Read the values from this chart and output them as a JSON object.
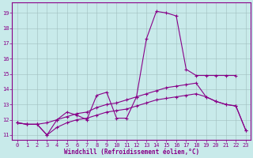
{
  "background_color": "#c8eaea",
  "grid_color": "#b0c8c8",
  "line_color": "#880088",
  "xlabel": "Windchill (Refroidissement éolien,°C)",
  "xlim": [
    -0.5,
    23.5
  ],
  "ylim": [
    10.7,
    19.7
  ],
  "yticks": [
    11,
    12,
    13,
    14,
    15,
    16,
    17,
    18,
    19
  ],
  "xticks": [
    0,
    1,
    2,
    3,
    4,
    5,
    6,
    7,
    8,
    9,
    10,
    11,
    12,
    13,
    14,
    15,
    16,
    17,
    18,
    19,
    20,
    21,
    22,
    23
  ],
  "series": [
    {
      "x": [
        0,
        1,
        2,
        3,
        4,
        5,
        6,
        7,
        8,
        9,
        10,
        11,
        12,
        13,
        14,
        15,
        16,
        17,
        18,
        19,
        20,
        21,
        22
      ],
      "y": [
        11.8,
        11.7,
        11.7,
        11.0,
        12.0,
        12.5,
        12.3,
        12.0,
        13.6,
        13.8,
        12.1,
        12.1,
        13.5,
        17.3,
        19.1,
        19.0,
        18.8,
        15.3,
        14.9,
        14.9,
        14.9,
        14.9,
        14.9
      ]
    },
    {
      "x": [
        0,
        1,
        2,
        3,
        4,
        5,
        6,
        7,
        8,
        9,
        10,
        11,
        12,
        13,
        14,
        15,
        16,
        17,
        18,
        19,
        20,
        21,
        22,
        23
      ],
      "y": [
        11.8,
        11.7,
        11.7,
        11.8,
        12.0,
        12.2,
        12.4,
        12.5,
        12.8,
        13.0,
        13.1,
        13.3,
        13.5,
        13.7,
        13.9,
        14.1,
        14.2,
        14.3,
        14.4,
        13.5,
        13.2,
        13.0,
        12.9,
        11.3
      ]
    },
    {
      "x": [
        0,
        1,
        2,
        3,
        4,
        5,
        6,
        7,
        8,
        9,
        10,
        11,
        12,
        13,
        14,
        15,
        16,
        17,
        18,
        19,
        20,
        21,
        22,
        23
      ],
      "y": [
        11.8,
        11.7,
        11.7,
        11.0,
        11.5,
        11.8,
        12.0,
        12.1,
        12.3,
        12.5,
        12.6,
        12.7,
        12.9,
        13.1,
        13.3,
        13.4,
        13.5,
        13.6,
        13.7,
        13.5,
        13.2,
        13.0,
        12.9,
        11.3
      ]
    }
  ]
}
